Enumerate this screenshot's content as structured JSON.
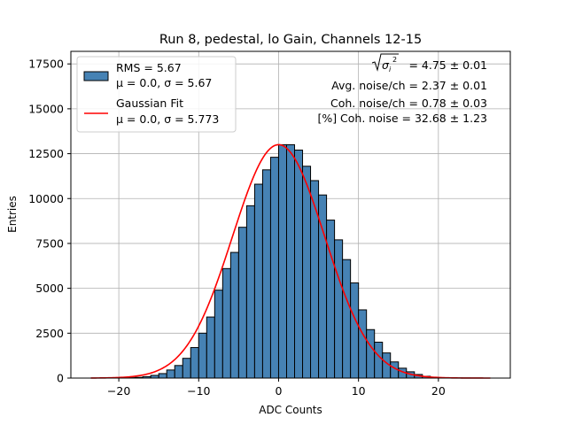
{
  "chart_data": {
    "type": "bar",
    "title": "Run 8, pedestal, lo Gain, Channels 12-15",
    "xlabel": "ADC Counts",
    "ylabel": "Entries",
    "xlim": [
      -26,
      29
    ],
    "ylim": [
      0,
      18200
    ],
    "xticks": [
      -20,
      -10,
      0,
      10,
      20
    ],
    "yticks": [
      0,
      2500,
      5000,
      7500,
      10000,
      12500,
      15000,
      17500
    ],
    "xtick_labels": [
      "−20",
      "−10",
      "0",
      "10",
      "20"
    ],
    "ytick_labels": [
      "0",
      "2500",
      "5000",
      "7500",
      "10000",
      "12500",
      "15000",
      "17500"
    ],
    "grid": true,
    "bin_width": 1,
    "histogram": {
      "name": "RMS = 5.67",
      "stats": "μ = 0.0, σ = 5.67",
      "color": "#4682b4",
      "edge_color": "#000000",
      "bin_left_edges": [
        -24,
        -23,
        -22,
        -21,
        -20,
        -19,
        -18,
        -17,
        -16,
        -15,
        -14,
        -13,
        -12,
        -11,
        -10,
        -9,
        -8,
        -7,
        -6,
        -5,
        -4,
        -3,
        -2,
        -1,
        0,
        1,
        2,
        3,
        4,
        5,
        6,
        7,
        8,
        9,
        10,
        11,
        12,
        13,
        14,
        15,
        16,
        17,
        18,
        19,
        20,
        21,
        22,
        23,
        24,
        25
      ],
      "counts": [
        0,
        0,
        0,
        5,
        10,
        20,
        40,
        80,
        150,
        250,
        450,
        700,
        1100,
        1700,
        2500,
        3400,
        4900,
        6100,
        7000,
        8400,
        9600,
        10800,
        11600,
        12300,
        13000,
        13000,
        12700,
        11800,
        11000,
        10200,
        8800,
        7700,
        6600,
        5300,
        3800,
        2700,
        2000,
        1400,
        900,
        550,
        350,
        200,
        100,
        50,
        25,
        12,
        6,
        3,
        0,
        0
      ]
    },
    "gaussian_fit": {
      "name": "Gaussian Fit",
      "stats": "μ = 0.0, σ = 5.773",
      "color": "#ff0000",
      "mu": 0.0,
      "sigma": 5.773,
      "amplitude": 13000,
      "x_range": [
        -23.5,
        26.5
      ]
    },
    "annotations": [
      "= 4.75 ± 0.01",
      "Avg. noise/ch = 2.37 ± 0.01",
      "Coh. noise/ch = 0.78 ± 0.03",
      "[%] Coh. noise = 32.68 ± 1.23"
    ],
    "legend_position": "upper-left"
  }
}
